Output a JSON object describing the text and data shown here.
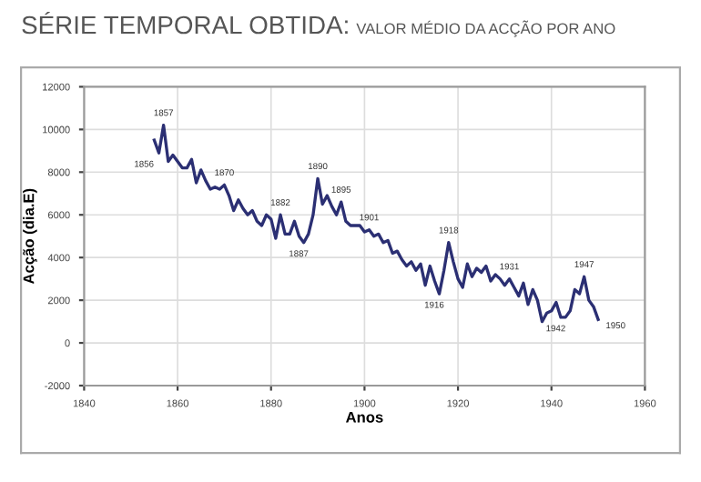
{
  "chart_data": {
    "type": "line",
    "title": "SÉRIE TEMPORAL OBTIDA:",
    "subtitle": "VALOR MÉDIO DA ACÇÃO POR ANO",
    "xlabel": "Anos",
    "ylabel": "Acção (dia.E)",
    "x": [
      1855,
      1856,
      1857,
      1858,
      1859,
      1860,
      1861,
      1862,
      1863,
      1864,
      1865,
      1866,
      1867,
      1868,
      1869,
      1870,
      1871,
      1872,
      1873,
      1874,
      1875,
      1876,
      1877,
      1878,
      1879,
      1880,
      1881,
      1882,
      1883,
      1884,
      1885,
      1886,
      1887,
      1888,
      1889,
      1890,
      1891,
      1892,
      1893,
      1894,
      1895,
      1896,
      1897,
      1898,
      1899,
      1900,
      1901,
      1902,
      1903,
      1904,
      1905,
      1906,
      1907,
      1908,
      1909,
      1910,
      1911,
      1912,
      1913,
      1914,
      1915,
      1916,
      1917,
      1918,
      1919,
      1920,
      1921,
      1922,
      1923,
      1924,
      1925,
      1926,
      1927,
      1928,
      1929,
      1930,
      1931,
      1932,
      1933,
      1934,
      1935,
      1936,
      1937,
      1938,
      1939,
      1940,
      1941,
      1942,
      1943,
      1944,
      1945,
      1946,
      1947,
      1948,
      1949,
      1950
    ],
    "series": [
      {
        "color": "#2b2f73",
        "values": [
          9500,
          8900,
          10200,
          8500,
          8800,
          8500,
          8200,
          8200,
          8600,
          7500,
          8100,
          7600,
          7200,
          7300,
          7200,
          7400,
          6900,
          6200,
          6700,
          6300,
          6000,
          6200,
          5700,
          5500,
          6000,
          5800,
          4900,
          6000,
          5100,
          5100,
          5700,
          5000,
          4700,
          5100,
          6000,
          7700,
          6500,
          6900,
          6400,
          6000,
          6600,
          5700,
          5500,
          5500,
          5500,
          5200,
          5300,
          5000,
          5100,
          4700,
          4800,
          4200,
          4300,
          3900,
          3600,
          3800,
          3400,
          3700,
          2700,
          3600,
          2900,
          2300,
          3400,
          4700,
          3800,
          3000,
          2600,
          3700,
          3100,
          3500,
          3300,
          3600,
          2900,
          3200,
          3000,
          2700,
          3000,
          2600,
          2200,
          2800,
          1800,
          2500,
          2000,
          1000,
          1400,
          1500,
          1900,
          1200,
          1200,
          1500,
          2500,
          2300,
          3100,
          2000,
          1700,
          1100
        ]
      }
    ],
    "xlim": [
      1840,
      1960
    ],
    "xticks": [
      1840,
      1860,
      1880,
      1900,
      1920,
      1940,
      1960
    ],
    "ylim": [
      -2000,
      12000
    ],
    "yticks": [
      -2000,
      0,
      2000,
      4000,
      6000,
      8000,
      10000,
      12000
    ],
    "grid": true,
    "legend": false,
    "marker": "none",
    "line_style": "solid",
    "annotations": [
      {
        "text": "1856",
        "x": 1856,
        "y": 8900
      },
      {
        "text": "1857",
        "x": 1857,
        "y": 10200
      },
      {
        "text": "1870",
        "x": 1870,
        "y": 7400
      },
      {
        "text": "1882",
        "x": 1882,
        "y": 6000
      },
      {
        "text": "1887",
        "x": 1887,
        "y": 4700
      },
      {
        "text": "1890",
        "x": 1890,
        "y": 7700
      },
      {
        "text": "1895",
        "x": 1895,
        "y": 6600
      },
      {
        "text": "1901",
        "x": 1901,
        "y": 5300
      },
      {
        "text": "1916",
        "x": 1916,
        "y": 2300
      },
      {
        "text": "1918",
        "x": 1918,
        "y": 4700
      },
      {
        "text": "1931",
        "x": 1931,
        "y": 3000
      },
      {
        "text": "1942",
        "x": 1942,
        "y": 1200
      },
      {
        "text": "1947",
        "x": 1947,
        "y": 3100
      },
      {
        "text": "1950",
        "x": 1950,
        "y": 1100
      }
    ]
  }
}
